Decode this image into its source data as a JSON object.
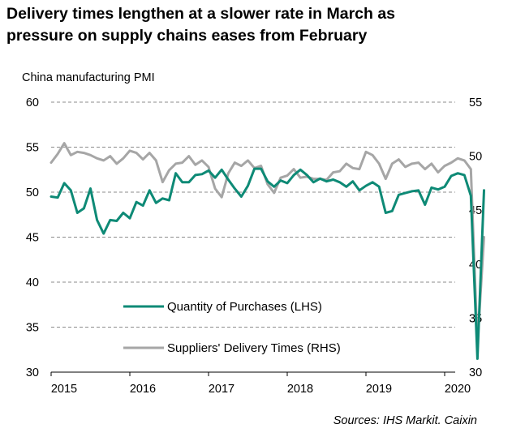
{
  "title_lines": [
    "Delivery times lengthen at a slower rate in March as",
    "pressure on supply chains eases from February"
  ],
  "subtitle": "China manufacturing PMI",
  "source": "Sources: IHS Markit. Caixin",
  "colors": {
    "purchases": "#0e8a76",
    "delivery": "#a6a6a6",
    "grid": "#8c8c8c"
  },
  "chart_data": {
    "type": "line",
    "title": "Delivery times lengthen at a slower rate in March as pressure on supply chains eases from February",
    "ylabel": "China manufacturing PMI",
    "x_tick_labels": [
      "2015",
      "2016",
      "2017",
      "2018",
      "2019",
      "2020"
    ],
    "x_start": "2015-01",
    "y_left": {
      "range": [
        30,
        60
      ],
      "ticks": [
        30,
        35,
        40,
        45,
        50,
        55,
        60
      ]
    },
    "y_right": {
      "range": [
        30,
        55
      ],
      "ticks": [
        30,
        35,
        40,
        45,
        50,
        55
      ]
    },
    "grid": true,
    "legend_position": "bottom-left",
    "series": [
      {
        "name": "Quantity of Purchases (LHS)",
        "axis": "left",
        "color": "#0e8a76",
        "values": [
          49.5,
          49.4,
          51.0,
          50.2,
          47.7,
          48.2,
          50.4,
          46.9,
          45.4,
          46.9,
          46.8,
          47.7,
          47.1,
          48.9,
          48.5,
          50.2,
          48.8,
          49.3,
          49.1,
          52.1,
          51.1,
          51.1,
          51.9,
          52.0,
          52.4,
          51.6,
          52.5,
          51.4,
          50.4,
          49.5,
          50.7,
          52.6,
          52.6,
          51.2,
          50.6,
          51.3,
          51.0,
          51.9,
          52.5,
          51.9,
          51.1,
          51.5,
          51.2,
          51.4,
          51.1,
          50.6,
          51.2,
          50.2,
          50.7,
          51.1,
          50.6,
          47.7,
          47.9,
          49.7,
          49.9,
          50.1,
          50.2,
          48.6,
          50.5,
          50.3,
          50.6,
          51.8,
          52.1,
          51.9,
          49.6,
          31.5,
          50.2
        ]
      },
      {
        "name": "Suppliers' Delivery Times (RHS)",
        "axis": "right",
        "color": "#a6a6a6",
        "values": [
          49.4,
          50.2,
          51.2,
          50.1,
          50.4,
          50.3,
          50.1,
          49.8,
          49.6,
          50.0,
          49.3,
          49.8,
          50.5,
          50.3,
          49.7,
          50.3,
          49.6,
          47.6,
          48.7,
          49.3,
          49.4,
          50.0,
          49.2,
          49.6,
          49.0,
          47.0,
          46.2,
          48.4,
          49.4,
          49.1,
          49.6,
          48.9,
          49.1,
          47.4,
          46.6,
          48.0,
          48.2,
          48.8,
          48.0,
          48.1,
          47.9,
          47.9,
          47.8,
          48.5,
          48.6,
          49.3,
          48.9,
          48.8,
          50.4,
          50.1,
          49.3,
          47.9,
          49.3,
          49.7,
          49.0,
          49.3,
          49.4,
          48.8,
          49.3,
          48.5,
          49.1,
          49.4,
          49.8,
          49.6,
          48.8,
          32.5,
          42.5
        ]
      }
    ]
  }
}
